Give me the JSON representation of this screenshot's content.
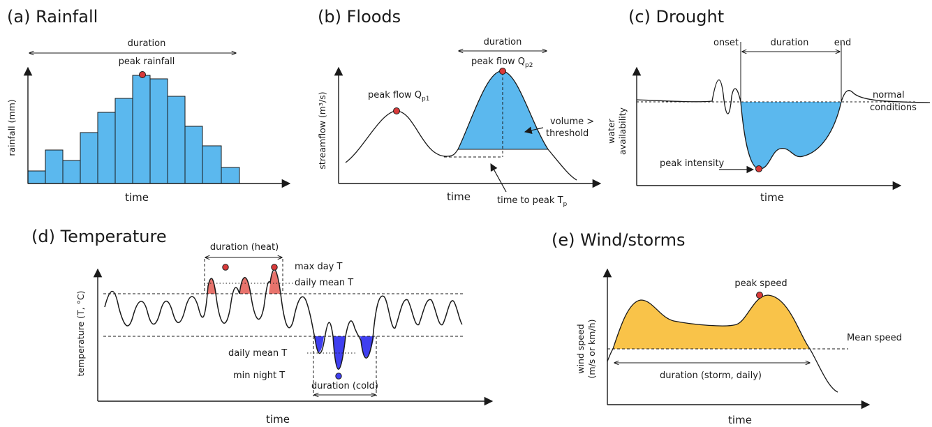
{
  "colors": {
    "blue_fill": "#5bb8ee",
    "red_marker": "#d93a3a",
    "heat_fill": "#e8736c",
    "cold_fill": "#3f3ff0",
    "storm_fill": "#f9c349",
    "line": "#1a1a1a"
  },
  "panel_a": {
    "title": "(a)  Rainfall",
    "duration_label": "duration",
    "peak_label": "peak rainfall",
    "y_label": "rainfall (mm)",
    "x_label": "time"
  },
  "panel_b": {
    "title": "(b)  Floods",
    "duration_label": "duration",
    "peak1_label": "peak flow Q",
    "peak1_sub": "p1",
    "peak2_label": "peak flow Q",
    "peak2_sub": "p2",
    "volume_label_1": "volume >",
    "volume_label_2": "threshold",
    "y_label": "streamflow (m³/s)",
    "x_label": "time",
    "ttp_label": "time to peak T",
    "ttp_sub": "p"
  },
  "panel_c": {
    "title": "(c)  Drought",
    "onset_label": "onset",
    "duration_label": "duration",
    "end_label": "end",
    "normal_label_1": "normal",
    "normal_label_2": "conditions",
    "y_label_1": "water",
    "y_label_2": "availability",
    "peak_label": "peak intensity",
    "x_label": "time"
  },
  "panel_d": {
    "title": "(d)  Temperature",
    "duration_heat": "duration (heat)",
    "max_day": "max day T",
    "daily_mean_hot": "daily mean T",
    "daily_mean_cold": "daily mean T",
    "min_night": "min night T",
    "duration_cold": "duration (cold)",
    "y_label": "temperature (T, °C)",
    "x_label": "time"
  },
  "panel_e": {
    "title": "(e)  Wind/storms",
    "peak_label": "peak speed",
    "mean_label": "Mean speed",
    "duration_label": "duration (storm, daily)",
    "y_label_1": "wind speed",
    "y_label_2": "(m/s or km/h)",
    "x_label": "time"
  }
}
